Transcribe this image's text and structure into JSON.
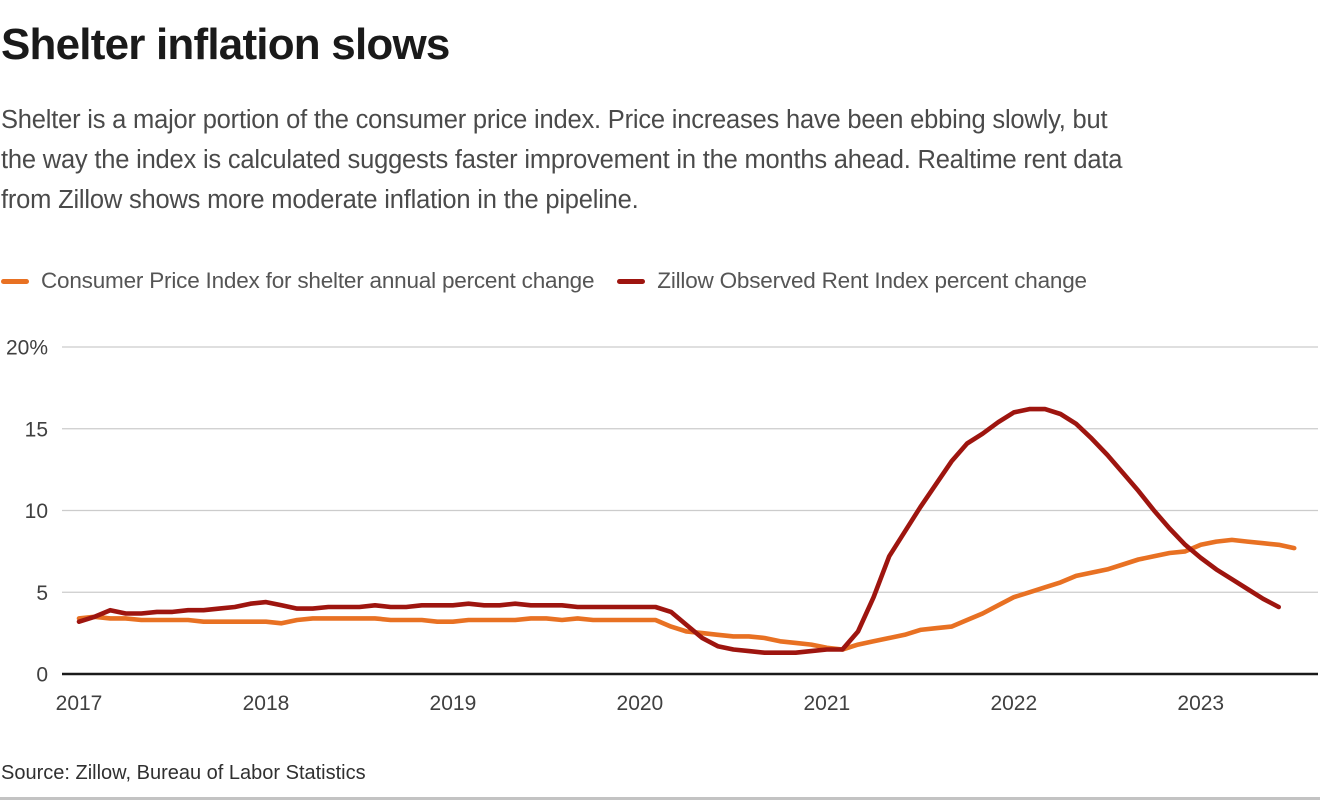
{
  "header": {
    "title": "Shelter inflation slows",
    "subtitle_lines": [
      "Shelter is a major portion of the consumer price index. Price increases have been ebbing slowly, but",
      "the way the index is calculated suggests faster improvement in the months ahead. Realtime rent data",
      "from Zillow shows more moderate inflation in the pipeline."
    ]
  },
  "source": {
    "text": "Source: Zillow, Bureau of Labor Statistics"
  },
  "chart_data": {
    "type": "line",
    "title": "Shelter inflation slows",
    "unit": "annual percent change",
    "x_start": "2017-01",
    "x_frequency": "monthly",
    "ylim": [
      0,
      20
    ],
    "grid": "horizontal",
    "legend_position": "top-left",
    "grid_color": "#cccccc",
    "axis_color": "#1a1a1a",
    "tick_color": "#404040",
    "yticks": [
      {
        "value": 0,
        "label": "0"
      },
      {
        "value": 5,
        "label": "5"
      },
      {
        "value": 10,
        "label": "10"
      },
      {
        "value": 15,
        "label": "15"
      },
      {
        "value": 20,
        "label": "20%"
      }
    ],
    "xticks": [
      {
        "month_index": 0,
        "label": "2017"
      },
      {
        "month_index": 12,
        "label": "2018"
      },
      {
        "month_index": 24,
        "label": "2019"
      },
      {
        "month_index": 36,
        "label": "2020"
      },
      {
        "month_index": 48,
        "label": "2021"
      },
      {
        "month_index": 60,
        "label": "2022"
      },
      {
        "month_index": 72,
        "label": "2023"
      }
    ],
    "series": [
      {
        "name": "Consumer Price Index for shelter annual percent change",
        "color": "#e87123",
        "values": [
          3.4,
          3.5,
          3.4,
          3.4,
          3.3,
          3.3,
          3.3,
          3.3,
          3.2,
          3.2,
          3.2,
          3.2,
          3.2,
          3.1,
          3.3,
          3.4,
          3.4,
          3.4,
          3.4,
          3.4,
          3.3,
          3.3,
          3.3,
          3.2,
          3.2,
          3.3,
          3.3,
          3.3,
          3.3,
          3.4,
          3.4,
          3.3,
          3.4,
          3.3,
          3.3,
          3.3,
          3.3,
          3.3,
          2.9,
          2.6,
          2.5,
          2.4,
          2.3,
          2.3,
          2.2,
          2.0,
          1.9,
          1.8,
          1.6,
          1.5,
          1.8,
          2.0,
          2.2,
          2.4,
          2.7,
          2.8,
          2.9,
          3.3,
          3.7,
          4.2,
          4.7,
          5.0,
          5.3,
          5.6,
          6.0,
          6.2,
          6.4,
          6.7,
          7.0,
          7.2,
          7.4,
          7.5,
          7.9,
          8.1,
          8.2,
          8.1,
          8.0,
          7.9,
          7.7
        ]
      },
      {
        "name": "Zillow Observed Rent Index percent change",
        "color": "#9e150f",
        "values": [
          3.2,
          3.5,
          3.9,
          3.7,
          3.7,
          3.8,
          3.8,
          3.9,
          3.9,
          4.0,
          4.1,
          4.3,
          4.4,
          4.2,
          4.0,
          4.0,
          4.1,
          4.1,
          4.1,
          4.2,
          4.1,
          4.1,
          4.2,
          4.2,
          4.2,
          4.3,
          4.2,
          4.2,
          4.3,
          4.2,
          4.2,
          4.2,
          4.1,
          4.1,
          4.1,
          4.1,
          4.1,
          4.1,
          3.8,
          3.0,
          2.2,
          1.7,
          1.5,
          1.4,
          1.3,
          1.3,
          1.3,
          1.4,
          1.5,
          1.5,
          2.6,
          4.7,
          7.2,
          8.7,
          10.2,
          11.6,
          13.0,
          14.1,
          14.7,
          15.4,
          16.0,
          16.2,
          16.2,
          15.9,
          15.3,
          14.4,
          13.4,
          12.3,
          11.2,
          10.0,
          8.9,
          7.9,
          7.1,
          6.4,
          5.8,
          5.2,
          4.6,
          4.1
        ]
      }
    ]
  }
}
